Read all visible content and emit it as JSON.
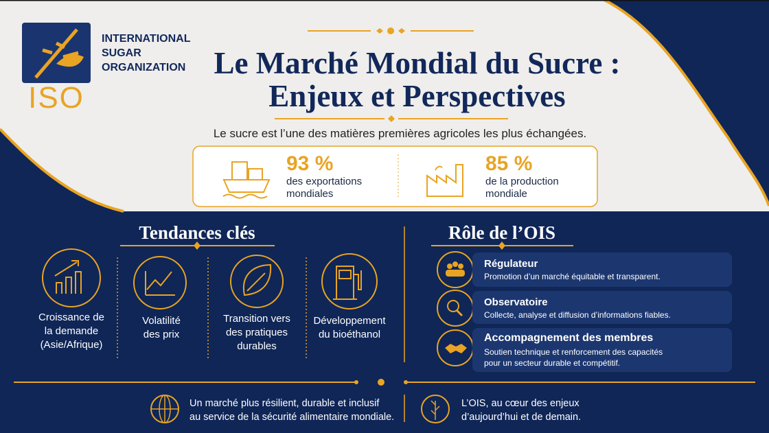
{
  "logo": {
    "mark": "ISO",
    "name_lines": [
      "INTERNATIONAL",
      "SUGAR",
      "ORGANIZATION"
    ]
  },
  "header": {
    "title_lines": [
      "Le Marché Mondial du Sucre :",
      "Enjeux et Perspectives"
    ],
    "subtitle": "Le sucre est l’une des matières premières agricoles les plus échangées."
  },
  "stats": [
    {
      "value": "93 %",
      "label_lines": [
        "des exportations",
        "mondiales"
      ]
    },
    {
      "value": "85 %",
      "label_lines": [
        "de la production",
        "mondiale"
      ]
    }
  ],
  "trends": {
    "title": "Tendances clés",
    "items": [
      {
        "lines": [
          "Croissance de",
          "la demande",
          "(Asie/Afrique)"
        ]
      },
      {
        "lines": [
          "Volatilité",
          "des prix"
        ]
      },
      {
        "lines": [
          "Transition vers",
          "des pratiques",
          "durables"
        ]
      },
      {
        "lines": [
          "Développement",
          "du bioéthanol"
        ]
      }
    ]
  },
  "role": {
    "title": "Rôle de l’OIS",
    "items": [
      {
        "title": "Régulateur",
        "text_lines": [
          "Promotion d’un marché équitable et transparent."
        ]
      },
      {
        "title": "Observatoire",
        "text_lines": [
          "Collecte, analyse et diffusion d’informations fiables."
        ]
      },
      {
        "title": "Accompagnement des membres",
        "text_lines": [
          "Soutien technique et renforcement des capacités",
          "pour un secteur durable et compétitif."
        ]
      }
    ]
  },
  "footer": [
    {
      "lines": [
        "Un marché plus résilient, durable et inclusif",
        "au service de la sécurité alimentaire mondiale."
      ]
    },
    {
      "lines": [
        "L’OIS, au cœur des enjeux",
        "d’aujourd’hui et de demain."
      ]
    }
  ]
}
